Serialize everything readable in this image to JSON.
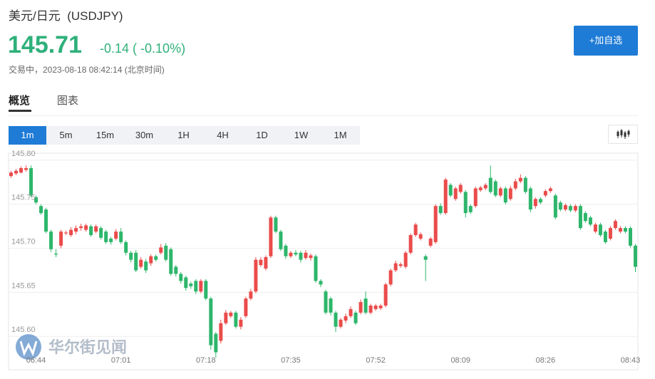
{
  "header": {
    "title": "美元/日元",
    "code": "(USDJPY)",
    "price": "145.71",
    "change": "-0.14",
    "change_pct": "( -0.10%)",
    "status": "交易中，2023-08-18 08:42:14 (北京时间)",
    "button": "+加自选"
  },
  "tabs": [
    "概览",
    "图表"
  ],
  "periods": [
    "1m",
    "5m",
    "15m",
    "30m",
    "1H",
    "4H",
    "1D",
    "1W",
    "1M"
  ],
  "watermark": "华尔街见闻",
  "chart_data": {
    "type": "candlestick",
    "up_color": "#eb4b4b",
    "down_color": "#2db66b",
    "grid": true,
    "ylim": [
      145.563,
      145.808
    ],
    "yticks": [
      {
        "value": 145.6,
        "label": "145.60"
      },
      145.65,
      {
        "value": 145.7,
        "label": "145.70"
      },
      145.75,
      {
        "value": 145.8,
        "label": "145.80"
      }
    ],
    "categories": [
      null,
      null,
      null,
      null,
      null,
      "06:44",
      null,
      null,
      null,
      null,
      null,
      null,
      null,
      null,
      null,
      null,
      null,
      null,
      null,
      null,
      null,
      null,
      "07:01",
      null,
      null,
      null,
      null,
      null,
      null,
      null,
      null,
      null,
      null,
      null,
      null,
      null,
      null,
      null,
      null,
      "07:18",
      null,
      null,
      null,
      null,
      null,
      null,
      null,
      null,
      null,
      null,
      null,
      null,
      null,
      null,
      null,
      null,
      "07:35",
      null,
      null,
      null,
      null,
      null,
      null,
      null,
      null,
      null,
      null,
      null,
      null,
      null,
      null,
      null,
      null,
      "07:52",
      null,
      null,
      null,
      null,
      null,
      null,
      null,
      null,
      null,
      null,
      null,
      null,
      null,
      null,
      null,
      null,
      "08:09",
      null,
      null,
      null,
      null,
      null,
      null,
      null,
      null,
      null,
      null,
      null,
      null,
      null,
      null,
      null,
      null,
      "08:26",
      null,
      null,
      null,
      null,
      null,
      null,
      null,
      null,
      null,
      null,
      null,
      null,
      null,
      null,
      null,
      null,
      "08:43",
      null
    ],
    "open": [
      145.782,
      145.785,
      145.786,
      145.789,
      145.791,
      145.758,
      145.748,
      145.744,
      145.719,
      145.694,
      145.703,
      145.717,
      145.715,
      145.719,
      145.723,
      145.721,
      145.725,
      145.719,
      145.723,
      145.719,
      145.711,
      145.711,
      145.719,
      145.707,
      145.695,
      145.695,
      145.679,
      145.685,
      145.683,
      145.691,
      145.695,
      145.703,
      145.699,
      145.679,
      145.671,
      145.667,
      145.66,
      145.663,
      145.651,
      145.663,
      145.643,
      145.603,
      145.595,
      145.615,
      145.623,
      145.627,
      145.611,
      145.623,
      145.643,
      145.651,
      145.681,
      145.677,
      145.691,
      145.735,
      145.719,
      145.703,
      145.691,
      145.695,
      145.695,
      145.689,
      145.689,
      145.691,
      145.663,
      145.651,
      145.643,
      145.627,
      145.611,
      145.618,
      145.623,
      145.627,
      145.627,
      145.643,
      145.627,
      145.631,
      145.632,
      145.635,
      145.659,
      145.675,
      145.68,
      145.679,
      145.695,
      145.715,
      145.711,
      145.691,
      145.703,
      145.707,
      145.748,
      145.74,
      145.772,
      145.756,
      145.764,
      145.764,
      145.748,
      145.748,
      145.766,
      145.768,
      145.78,
      145.776,
      145.76,
      145.768,
      145.756,
      145.768,
      145.776,
      145.78,
      145.768,
      145.748,
      145.756,
      145.76,
      145.765,
      145.76,
      145.752,
      145.744,
      145.748,
      145.743,
      145.748,
      145.74,
      145.735,
      145.719,
      145.727,
      145.719,
      145.711,
      145.723,
      145.719,
      145.723,
      145.723,
      145.703
    ],
    "high": [
      145.788,
      145.79,
      145.793,
      145.794,
      145.794,
      145.76,
      145.75,
      145.746,
      145.721,
      145.699,
      145.721,
      145.72,
      145.724,
      145.726,
      145.728,
      145.728,
      145.727,
      145.727,
      145.725,
      145.721,
      145.713,
      145.722,
      145.723,
      145.709,
      145.697,
      145.698,
      145.69,
      145.688,
      145.693,
      145.693,
      145.705,
      145.706,
      145.701,
      145.681,
      145.673,
      145.669,
      145.662,
      145.665,
      145.665,
      145.665,
      145.645,
      145.605,
      145.619,
      145.63,
      145.629,
      145.629,
      145.622,
      145.645,
      145.654,
      145.69,
      145.69,
      145.692,
      145.737,
      145.737,
      145.721,
      145.705,
      145.697,
      145.698,
      145.697,
      145.698,
      145.694,
      145.693,
      145.665,
      145.653,
      145.645,
      145.629,
      145.621,
      145.626,
      145.634,
      145.629,
      145.642,
      145.651,
      145.637,
      145.637,
      145.637,
      145.661,
      145.677,
      145.686,
      145.684,
      145.697,
      145.717,
      145.729,
      145.718,
      145.693,
      145.713,
      145.75,
      145.751,
      145.78,
      145.774,
      145.77,
      145.774,
      145.766,
      145.75,
      145.77,
      145.771,
      145.774,
      145.794,
      145.778,
      145.77,
      145.77,
      145.771,
      145.779,
      145.784,
      145.782,
      145.77,
      145.758,
      145.758,
      145.767,
      145.77,
      145.762,
      145.754,
      145.751,
      145.75,
      145.75,
      145.75,
      145.742,
      145.737,
      145.729,
      145.729,
      145.721,
      145.725,
      145.733,
      145.725,
      145.725,
      145.725,
      145.705
    ],
    "low": [
      145.78,
      145.783,
      145.785,
      145.787,
      145.758,
      145.75,
      145.738,
      145.717,
      145.696,
      145.69,
      145.7,
      145.715,
      145.713,
      145.716,
      145.72,
      145.719,
      145.713,
      145.717,
      145.71,
      145.705,
      145.704,
      145.709,
      145.705,
      145.692,
      145.684,
      145.673,
      145.677,
      145.672,
      145.68,
      145.685,
      145.693,
      145.685,
      145.669,
      145.668,
      145.66,
      145.652,
      145.654,
      145.648,
      145.649,
      145.641,
      145.585,
      145.576,
      145.592,
      145.613,
      145.621,
      145.609,
      145.608,
      145.621,
      145.641,
      145.649,
      145.679,
      145.675,
      145.689,
      145.717,
      145.697,
      145.688,
      145.689,
      145.691,
      145.684,
      145.687,
      145.686,
      145.661,
      145.656,
      145.625,
      145.624,
      145.605,
      145.609,
      145.615,
      145.621,
      145.613,
      145.625,
      145.625,
      145.625,
      145.629,
      145.63,
      145.633,
      145.657,
      145.673,
      145.678,
      145.677,
      145.693,
      145.713,
      145.709,
      145.663,
      145.701,
      145.705,
      145.738,
      145.738,
      145.758,
      145.754,
      145.762,
      145.735,
      145.739,
      145.746,
      145.764,
      145.766,
      145.762,
      145.758,
      145.758,
      145.75,
      145.754,
      145.766,
      145.774,
      145.762,
      145.741,
      145.745,
      145.75,
      145.758,
      145.763,
      145.733,
      145.742,
      145.742,
      145.741,
      145.741,
      145.721,
      145.729,
      145.725,
      145.717,
      145.713,
      145.705,
      145.709,
      145.721,
      145.717,
      145.717,
      145.701,
      145.673
    ],
    "close": [
      145.786,
      145.788,
      145.791,
      145.791,
      145.76,
      145.752,
      145.74,
      145.719,
      145.699,
      145.693,
      145.719,
      145.718,
      145.721,
      145.723,
      145.725,
      145.726,
      145.715,
      145.725,
      145.712,
      145.707,
      145.707,
      145.719,
      145.707,
      145.695,
      145.687,
      145.675,
      145.687,
      145.675,
      145.691,
      145.687,
      145.701,
      145.687,
      145.671,
      145.671,
      145.663,
      145.655,
      145.657,
      145.651,
      145.663,
      145.643,
      145.59,
      145.582,
      145.615,
      145.627,
      145.627,
      145.611,
      145.619,
      145.643,
      145.651,
      145.687,
      145.687,
      145.69,
      145.735,
      145.719,
      145.699,
      145.691,
      145.695,
      145.693,
      145.687,
      145.695,
      145.692,
      145.663,
      145.659,
      145.627,
      145.627,
      145.611,
      145.619,
      145.623,
      145.631,
      145.615,
      145.639,
      145.627,
      145.635,
      145.635,
      145.635,
      145.659,
      145.675,
      145.683,
      145.682,
      145.695,
      145.715,
      145.727,
      145.716,
      145.687,
      145.711,
      145.748,
      145.74,
      145.778,
      145.76,
      145.768,
      145.772,
      145.74,
      145.741,
      145.768,
      145.769,
      145.772,
      145.764,
      145.76,
      145.768,
      145.752,
      145.768,
      145.776,
      145.78,
      145.764,
      145.744,
      145.756,
      145.752,
      145.765,
      145.768,
      145.735,
      145.744,
      145.749,
      145.743,
      145.748,
      145.723,
      145.731,
      145.727,
      145.727,
      145.715,
      145.707,
      145.723,
      145.731,
      145.723,
      145.719,
      145.703,
      145.679
    ]
  }
}
